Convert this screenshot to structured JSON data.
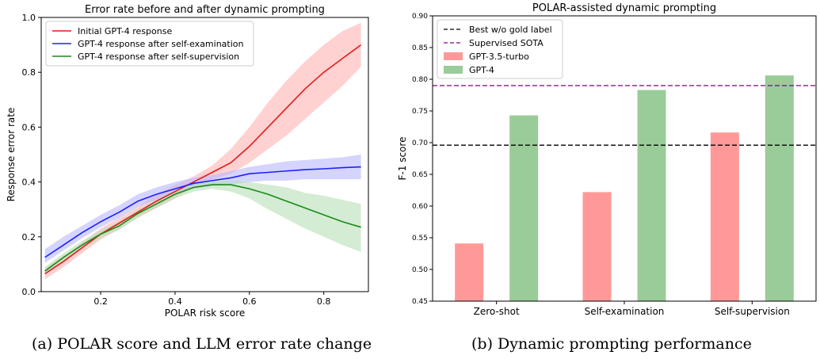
{
  "captions": {
    "left": "(a) POLAR score and LLM error rate change",
    "right": "(b) Dynamic prompting performance"
  },
  "chart_data": [
    {
      "type": "line",
      "title": "Error rate before and after dynamic prompting",
      "xlabel": "POLAR risk score",
      "ylabel": "Response error rate",
      "xlim": [
        0.04,
        0.92
      ],
      "ylim": [
        0.0,
        1.0
      ],
      "xticks": [
        0.2,
        0.4,
        0.6,
        0.8
      ],
      "yticks": [
        0.0,
        0.2,
        0.4,
        0.6,
        0.8,
        1.0
      ],
      "grid": false,
      "legend_position": "top-left",
      "series": [
        {
          "name": "Initial GPT-4 response",
          "color": "#e41a1c",
          "band_color": "#ffb3b3",
          "x": [
            0.05,
            0.1,
            0.15,
            0.2,
            0.25,
            0.3,
            0.35,
            0.4,
            0.45,
            0.5,
            0.55,
            0.6,
            0.65,
            0.7,
            0.75,
            0.8,
            0.85,
            0.9
          ],
          "y": [
            0.065,
            0.11,
            0.16,
            0.21,
            0.25,
            0.29,
            0.33,
            0.365,
            0.4,
            0.435,
            0.47,
            0.53,
            0.6,
            0.67,
            0.74,
            0.8,
            0.85,
            0.9
          ],
          "lower": [
            0.045,
            0.09,
            0.14,
            0.19,
            0.23,
            0.27,
            0.305,
            0.34,
            0.38,
            0.41,
            0.43,
            0.47,
            0.52,
            0.57,
            0.63,
            0.69,
            0.75,
            0.82
          ],
          "upper": [
            0.085,
            0.13,
            0.18,
            0.23,
            0.27,
            0.31,
            0.355,
            0.39,
            0.42,
            0.46,
            0.52,
            0.6,
            0.69,
            0.77,
            0.84,
            0.9,
            0.95,
            0.98
          ]
        },
        {
          "name": "GPT-4 response after self-examination",
          "color": "#1f1fff",
          "band_color": "#b8b8ff",
          "x": [
            0.05,
            0.1,
            0.15,
            0.2,
            0.25,
            0.3,
            0.35,
            0.4,
            0.45,
            0.5,
            0.55,
            0.6,
            0.65,
            0.7,
            0.75,
            0.8,
            0.85,
            0.9
          ],
          "y": [
            0.125,
            0.17,
            0.215,
            0.255,
            0.29,
            0.33,
            0.355,
            0.375,
            0.395,
            0.405,
            0.415,
            0.43,
            0.435,
            0.44,
            0.445,
            0.448,
            0.452,
            0.455
          ],
          "lower": [
            0.105,
            0.15,
            0.195,
            0.235,
            0.27,
            0.31,
            0.335,
            0.355,
            0.375,
            0.385,
            0.39,
            0.4,
            0.405,
            0.405,
            0.41,
            0.41,
            0.41,
            0.41
          ],
          "upper": [
            0.155,
            0.2,
            0.24,
            0.28,
            0.315,
            0.355,
            0.38,
            0.4,
            0.415,
            0.425,
            0.44,
            0.455,
            0.465,
            0.475,
            0.48,
            0.485,
            0.49,
            0.5
          ]
        },
        {
          "name": "GPT-4 response after self-supervision",
          "color": "#1a8a1a",
          "band_color": "#b5dfb5",
          "x": [
            0.05,
            0.1,
            0.15,
            0.2,
            0.25,
            0.3,
            0.35,
            0.4,
            0.45,
            0.5,
            0.55,
            0.6,
            0.65,
            0.7,
            0.75,
            0.8,
            0.85,
            0.9
          ],
          "y": [
            0.075,
            0.125,
            0.17,
            0.21,
            0.24,
            0.285,
            0.32,
            0.355,
            0.38,
            0.39,
            0.39,
            0.375,
            0.355,
            0.33,
            0.305,
            0.28,
            0.255,
            0.235
          ],
          "lower": [
            0.06,
            0.11,
            0.155,
            0.195,
            0.225,
            0.27,
            0.305,
            0.34,
            0.365,
            0.375,
            0.365,
            0.34,
            0.3,
            0.265,
            0.23,
            0.2,
            0.17,
            0.145
          ],
          "upper": [
            0.09,
            0.14,
            0.185,
            0.225,
            0.255,
            0.3,
            0.335,
            0.37,
            0.395,
            0.405,
            0.405,
            0.4,
            0.39,
            0.38,
            0.36,
            0.35,
            0.335,
            0.32
          ]
        }
      ]
    },
    {
      "type": "bar",
      "title": "POLAR-assisted dynamic prompting",
      "xlabel": "",
      "ylabel": "F-1 score",
      "ylim": [
        0.45,
        0.9
      ],
      "yticks": [
        0.45,
        0.5,
        0.55,
        0.6,
        0.65,
        0.7,
        0.75,
        0.8,
        0.85,
        0.9
      ],
      "grid": false,
      "legend_position": "top-left",
      "categories": [
        "Zero-shot",
        "Self-examination",
        "Self-supervision"
      ],
      "series": [
        {
          "name": "GPT-3.5-turbo",
          "color": "#ff9999",
          "values": [
            0.541,
            0.622,
            0.716
          ]
        },
        {
          "name": "GPT-4",
          "color": "#99cc99",
          "values": [
            0.743,
            0.783,
            0.806
          ]
        }
      ],
      "reference_lines": [
        {
          "name": "Best w/o gold label",
          "value": 0.696,
          "color": "#000000"
        },
        {
          "name": "Supervised SOTA",
          "value": 0.79,
          "color": "#800080"
        }
      ]
    }
  ]
}
